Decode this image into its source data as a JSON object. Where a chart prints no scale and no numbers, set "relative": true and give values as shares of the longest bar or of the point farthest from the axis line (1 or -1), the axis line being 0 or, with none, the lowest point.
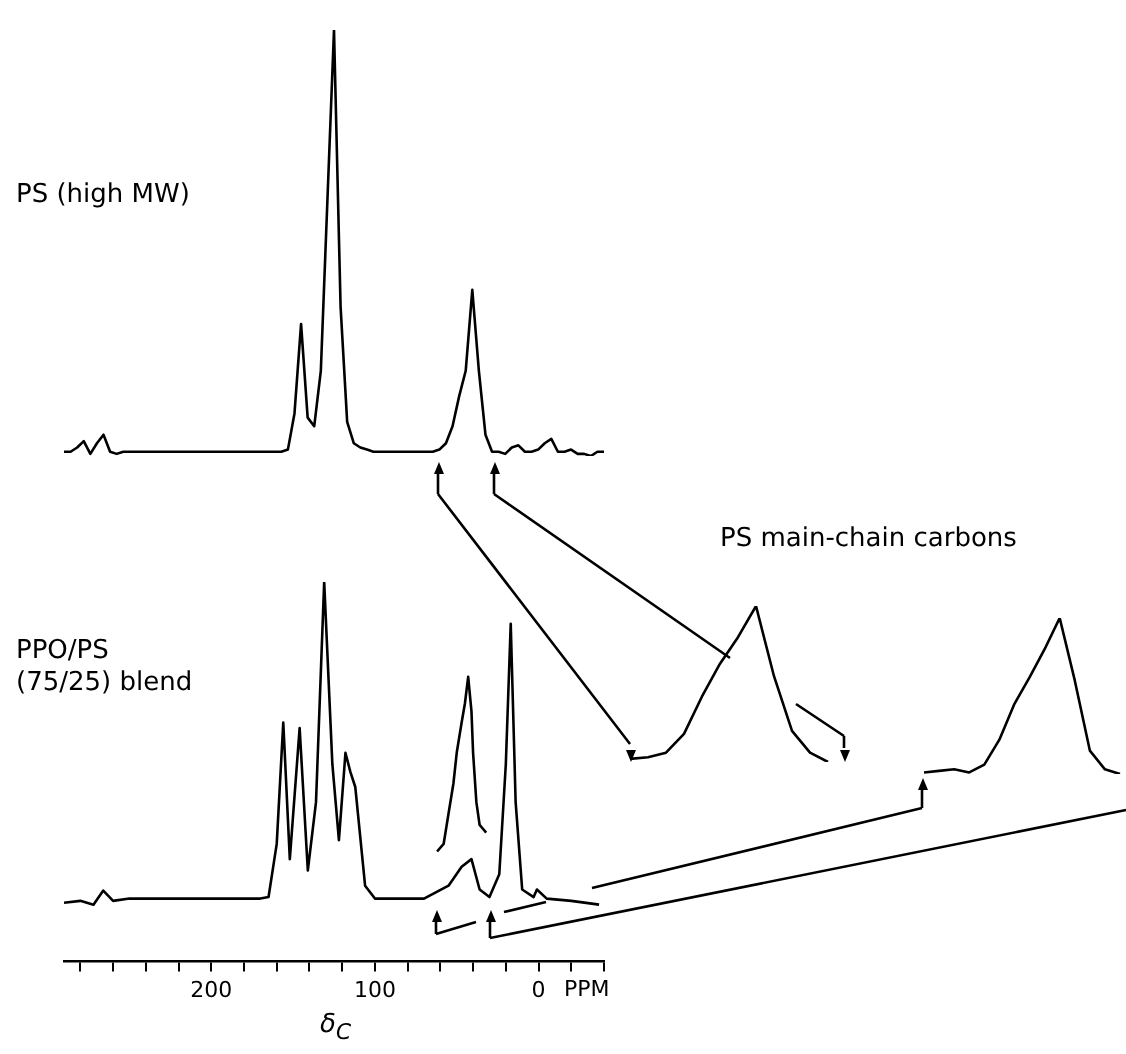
{
  "chart_data": [
    {
      "type": "line",
      "title": "PS (high MW)",
      "relative": true,
      "categories": [
        null,
        null,
        null,
        null,
        null,
        null,
        null,
        null,
        null,
        null,
        null,
        null,
        null,
        null,
        null,
        null,
        null,
        null,
        null,
        null,
        null,
        null,
        null,
        null,
        null,
        null,
        null,
        null,
        null,
        null,
        null,
        null,
        null,
        null,
        null,
        null,
        null,
        null,
        null,
        null,
        null,
        null,
        null,
        null,
        null,
        null,
        null,
        null,
        null,
        null,
        null,
        null,
        null,
        null,
        null,
        null,
        null,
        null,
        null,
        null,
        null,
        null,
        null,
        null,
        null,
        null,
        null,
        null,
        null,
        null,
        null,
        null,
        null,
        null,
        null,
        null,
        null,
        null,
        null,
        null,
        null,
        null,
        null
      ],
      "series": [
        {
          "color": "#000000",
          "values": [
            0.01,
            0.01,
            0.02,
            0.035,
            0.005,
            0.03,
            0.05,
            0.01,
            0.005,
            0.01,
            0.01,
            0.01,
            0.01,
            0.01,
            0.01,
            0.01,
            0.01,
            0.01,
            0.01,
            0.01,
            0.01,
            0.01,
            0.01,
            0.01,
            0.01,
            0.01,
            0.01,
            0.01,
            0.01,
            0.01,
            0.01,
            0.01,
            0.01,
            0.01,
            0.015,
            0.1,
            0.31,
            0.09,
            0.07,
            0.2,
            0.6,
            1,
            0.35,
            0.08,
            0.03,
            0.02,
            0.015,
            0.01,
            0.01,
            0.01,
            0.01,
            0.01,
            0.01,
            0.01,
            0.01,
            0.01,
            0.01,
            0.015,
            0.03,
            0.07,
            0.14,
            0.2,
            0.39,
            0.2,
            0.05,
            0.01,
            0.01,
            0.005,
            0.02,
            0.025,
            0.01,
            0.01,
            0.015,
            0.03,
            0.04,
            0.01,
            0.01,
            0.015,
            0.005,
            0.005,
            0,
            0.01,
            0.01
          ]
        }
      ]
    },
    {
      "type": "line",
      "title": "PPO/PS (75/25) blend",
      "xlabel": "δ$_{C}$",
      "annotations": [
        "PPM"
      ],
      "relative": true,
      "xlim": [
        290,
        -40
      ],
      "tick_labels": "x",
      "xticks": [
        {
          "value": 280,
          "label": null
        },
        {
          "value": 260,
          "label": null
        },
        {
          "value": 240,
          "label": null
        },
        {
          "value": 220,
          "label": null
        },
        200,
        {
          "value": 180,
          "label": null
        },
        {
          "value": 160,
          "label": null
        },
        {
          "value": 140,
          "label": null
        },
        {
          "value": 120,
          "label": null
        },
        100,
        {
          "value": 80,
          "label": null
        },
        {
          "value": 60,
          "label": null
        },
        {
          "value": 40,
          "label": null
        },
        {
          "value": 20,
          "label": null
        },
        0,
        {
          "value": -20,
          "label": null
        },
        {
          "value": -40,
          "label": null
        }
      ],
      "series": [
        {
          "color": "#000000",
          "x": [
            290,
            280,
            272,
            266,
            260,
            250,
            200,
            170,
            165,
            160,
            156,
            152,
            146,
            141,
            136,
            131,
            126,
            122,
            118,
            115,
            112,
            106,
            100,
            70,
            55,
            47,
            41,
            36,
            30,
            24,
            20,
            17,
            14,
            10,
            3,
            1,
            -5,
            -20,
            -37
          ],
          "values": [
            0.155,
            0.16,
            0.15,
            0.187,
            0.16,
            0.166,
            0.166,
            0.166,
            0.17,
            0.31,
            0.63,
            0.27,
            0.615,
            0.24,
            0.42,
            1,
            0.52,
            0.32,
            0.55,
            0.5,
            0.46,
            0.2,
            0.166,
            0.166,
            0.2,
            0.25,
            0.27,
            0.19,
            0.17,
            0.23,
            0.52,
            0.89,
            0.42,
            0.19,
            0.17,
            0.19,
            0.166,
            0.16,
            0.15
          ]
        },
        {
          "color": "#000000",
          "x": [
            62,
            58,
            55,
            52,
            50,
            47,
            45,
            43,
            41,
            40,
            38,
            36,
            34,
            32
          ],
          "values": [
            0.29,
            0.31,
            0.39,
            0.47,
            0.55,
            0.63,
            0.68,
            0.75,
            0.66,
            0.55,
            0.42,
            0.36,
            0.35,
            0.34
          ]
        }
      ]
    },
    {
      "type": "line",
      "title": "PS main-chain carbons",
      "relative": true,
      "categories": [
        null,
        null,
        null,
        null,
        null,
        null,
        null,
        null,
        null,
        null,
        null,
        null
      ],
      "series": [
        {
          "color": "#000000",
          "values": [
            0.02,
            0.03,
            0.06,
            0.18,
            0.42,
            0.63,
            0.8,
            1,
            0.55,
            0.2,
            0.06,
            0
          ]
        }
      ]
    },
    {
      "type": "line",
      "relative": true,
      "categories": [
        null,
        null,
        null,
        null,
        null,
        null,
        null,
        null,
        null,
        null,
        null,
        null,
        null,
        null
      ],
      "series": [
        {
          "color": "#000000",
          "values": [
            0.01,
            0.02,
            0.03,
            0.01,
            0.06,
            0.22,
            0.45,
            0.62,
            0.8,
            1,
            0.6,
            0.15,
            0.03,
            0
          ]
        }
      ]
    }
  ]
}
